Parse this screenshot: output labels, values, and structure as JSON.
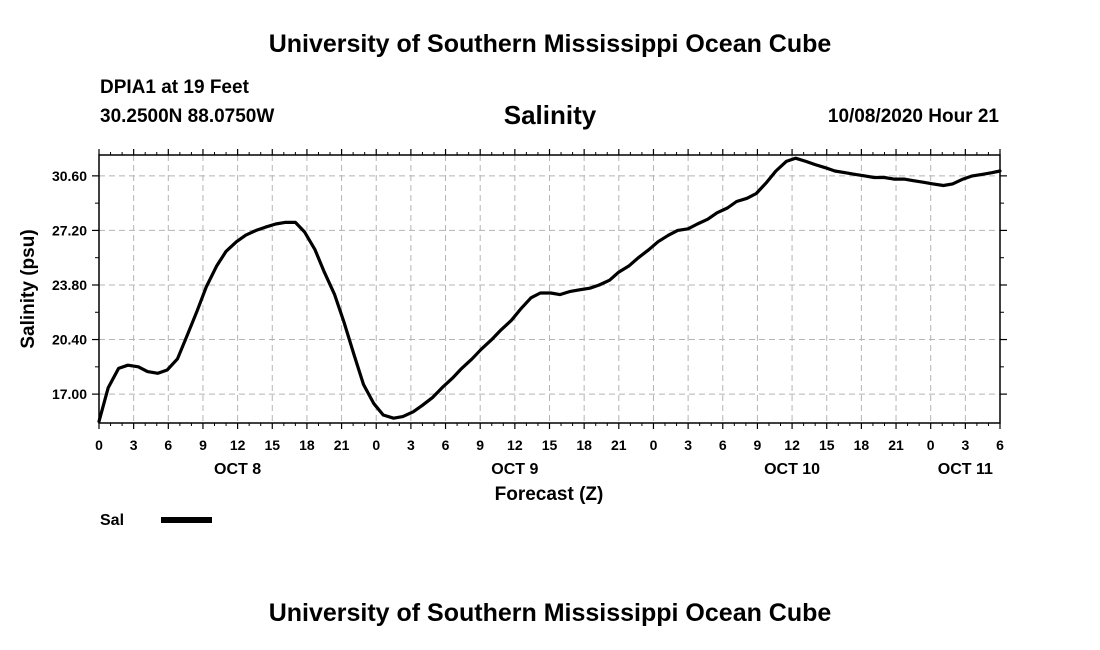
{
  "header": {
    "title_top": "University of Southern Mississippi Ocean Cube",
    "station": "DPIA1 at 19 Feet",
    "coords": "30.2500N 88.0750W",
    "chart_title": "Salinity",
    "datetime": "10/08/2020 Hour 21"
  },
  "footer": {
    "title_bottom": "University of Southern Mississippi Ocean Cube"
  },
  "colors": {
    "line": "#000000",
    "grid": "#b4b4b4",
    "background": "#ffffff"
  },
  "chart_data": {
    "type": "line",
    "title": "Salinity",
    "xlabel": "Forecast (Z)",
    "ylabel": "Salinity (psu)",
    "x_unit": "hours since Oct 8 00Z",
    "xlim": [
      0,
      78
    ],
    "ylim": [
      15.2,
      31.9
    ],
    "y_ticks": [
      17.0,
      20.4,
      23.8,
      27.2,
      30.6
    ],
    "y_tick_labels": [
      "17.00",
      "20.40",
      "23.80",
      "27.20",
      "30.60"
    ],
    "x_ticks": [
      0,
      3,
      6,
      9,
      12,
      15,
      18,
      21,
      24,
      27,
      30,
      33,
      36,
      39,
      42,
      45,
      48,
      51,
      54,
      57,
      60,
      63,
      66,
      69,
      72,
      75,
      78
    ],
    "x_tick_labels": [
      "0",
      "3",
      "6",
      "9",
      "12",
      "15",
      "18",
      "21",
      "0",
      "3",
      "6",
      "9",
      "12",
      "15",
      "18",
      "21",
      "0",
      "3",
      "6",
      "9",
      "12",
      "15",
      "18",
      "21",
      "0",
      "3",
      "6"
    ],
    "day_labels": [
      {
        "label": "OCT 8",
        "x": 12
      },
      {
        "label": "OCT 9",
        "x": 36
      },
      {
        "label": "OCT 10",
        "x": 60
      },
      {
        "label": "OCT 11",
        "x": 75
      }
    ],
    "grid": true,
    "legend": [
      {
        "name": "Sal",
        "placement": "bottom-left"
      }
    ],
    "series": [
      {
        "name": "Sal",
        "x": [
          0,
          0.8,
          1.7,
          2.5,
          3.4,
          4.2,
          5.1,
          5.9,
          6.8,
          7.6,
          8.5,
          9.3,
          10.2,
          11,
          11.9,
          12.7,
          13.6,
          14.4,
          15.3,
          16.1,
          17,
          17.8,
          18.7,
          19.5,
          20.4,
          21.2,
          22.1,
          22.9,
          23.8,
          24.6,
          25.5,
          26.3,
          27.2,
          28,
          28.9,
          29.7,
          30.6,
          31.4,
          32.3,
          33.1,
          34,
          34.8,
          35.7,
          36.5,
          37.4,
          38.2,
          39.1,
          39.9,
          40.8,
          41.6,
          42.5,
          43.3,
          44.2,
          45,
          45.9,
          46.7,
          47.6,
          48.4,
          49.3,
          50.1,
          51,
          51.8,
          52.7,
          53.5,
          54.4,
          55.2,
          56.1,
          56.9,
          57.8,
          58.6,
          59.5,
          60.3,
          61.2,
          62,
          62.9,
          63.7,
          64.6,
          65.4,
          66.3,
          67.1,
          68,
          68.8,
          69.7,
          70.5,
          71.4,
          72.2,
          73.1,
          73.9,
          74.8,
          75.6,
          76.5,
          77.3,
          78
        ],
        "values": [
          15.3,
          17.4,
          18.6,
          18.8,
          18.7,
          18.4,
          18.3,
          18.5,
          19.2,
          20.6,
          22.2,
          23.7,
          25.0,
          25.9,
          26.5,
          26.9,
          27.2,
          27.4,
          27.6,
          27.7,
          27.7,
          27.1,
          26.0,
          24.6,
          23.2,
          21.5,
          19.4,
          17.6,
          16.4,
          15.7,
          15.5,
          15.6,
          15.9,
          16.3,
          16.8,
          17.4,
          18.0,
          18.6,
          19.2,
          19.8,
          20.4,
          21.0,
          21.6,
          22.3,
          23.0,
          23.3,
          23.3,
          23.2,
          23.4,
          23.5,
          23.6,
          23.8,
          24.1,
          24.6,
          25.0,
          25.5,
          26.0,
          26.5,
          26.9,
          27.2,
          27.3,
          27.6,
          27.9,
          28.3,
          28.6,
          29.0,
          29.2,
          29.5,
          30.2,
          30.9,
          31.5,
          31.7,
          31.5,
          31.3,
          31.1,
          30.9,
          30.8,
          30.7,
          30.6,
          30.5,
          30.5,
          30.4,
          30.4,
          30.3,
          30.2,
          30.1,
          30.0,
          30.1,
          30.4,
          30.6,
          30.7,
          30.8,
          30.9
        ]
      }
    ]
  }
}
